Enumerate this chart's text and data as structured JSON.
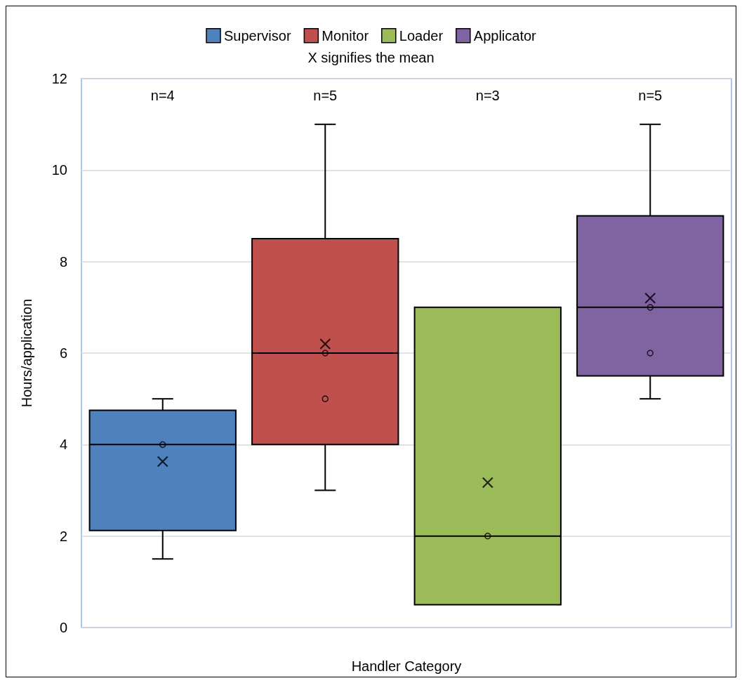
{
  "chart_data": {
    "type": "box",
    "subtitle": "X signifies the mean",
    "xlabel": "Handler Category",
    "ylabel": "Hours/application",
    "categories": [
      null,
      null,
      null,
      null
    ],
    "series": [
      {
        "name": "Supervisor",
        "type": "box",
        "color": "#4f81bd",
        "boxes": [
          {
            "low": 1.5,
            "q1": 2.12,
            "median": 4,
            "q3": 4.75,
            "high": 5,
            "mean": 3.63
          },
          null,
          null,
          null
        ]
      },
      {
        "name": "Monitor",
        "type": "box",
        "color": "#c0504d",
        "boxes": [
          null,
          {
            "low": 3,
            "q1": 4,
            "median": 6,
            "q3": 8.5,
            "high": 11,
            "mean": 6.2
          },
          null,
          null
        ]
      },
      {
        "name": "Loader",
        "type": "box",
        "color": "#9bbb59",
        "boxes": [
          null,
          null,
          {
            "low": 0.5,
            "q1": 0.5,
            "median": 2,
            "q3": 7,
            "high": 7,
            "mean": 3.17
          },
          null
        ]
      },
      {
        "name": "Applicator",
        "type": "box",
        "color": "#8064a2",
        "boxes": [
          null,
          null,
          null,
          {
            "low": 5,
            "q1": 5.5,
            "median": 7,
            "q3": 9,
            "high": 11,
            "mean": 7.2
          }
        ]
      },
      {
        "type": "scatter",
        "color": "#000000",
        "values": [
          4,
          6,
          2,
          7
        ]
      },
      {
        "type": "scatter",
        "color": "#000000",
        "values": [
          null,
          5,
          null,
          6
        ]
      }
    ],
    "annotations": [
      "n=4",
      "n=5",
      "n=3",
      "n=5"
    ],
    "ylim": [
      0,
      12
    ],
    "yticks": [
      0,
      2,
      4,
      6,
      8,
      10,
      12
    ],
    "grid": "y",
    "legend": "top",
    "marker": "circle"
  }
}
